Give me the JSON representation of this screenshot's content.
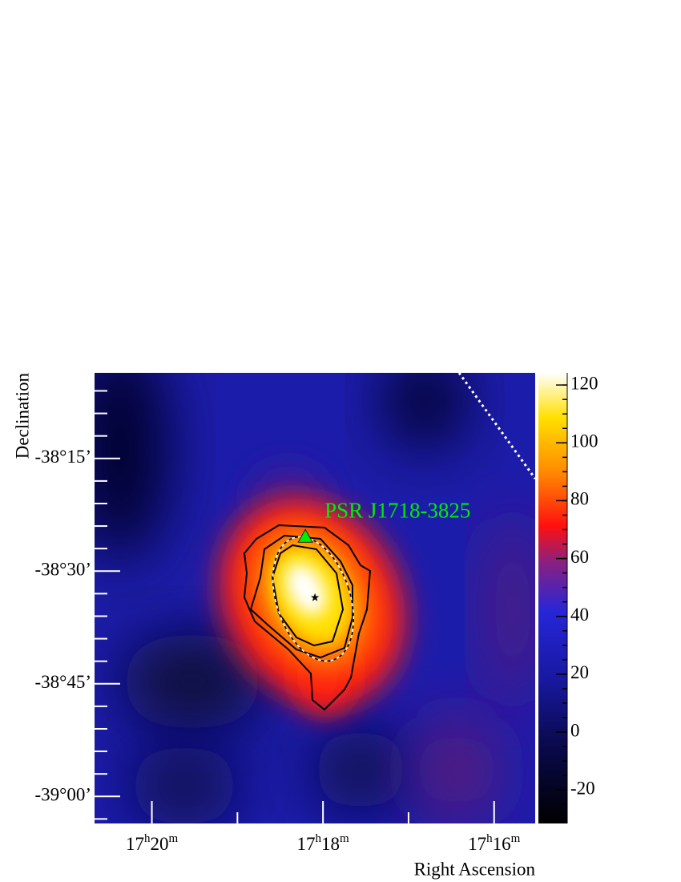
{
  "chart_data": {
    "type": "skymap",
    "x_label": "Right Ascension",
    "y_label": "Declination",
    "xlim": [
      1040.67,
      1035.52
    ],
    "xticks": [
      {
        "value": 1040,
        "label": [
          "17",
          "h",
          "20",
          "m"
        ]
      },
      {
        "value": 1038,
        "label": [
          "17",
          "h",
          "18",
          "m"
        ]
      },
      {
        "value": 1036,
        "label": [
          "17",
          "h",
          "16",
          "m"
        ]
      }
    ],
    "ylim": [
      -39.06,
      -38.06
    ],
    "yticks": [
      {
        "value": -38.25,
        "label": "-38°15’"
      },
      {
        "value": -38.5,
        "label": "-38°30’"
      },
      {
        "value": -38.75,
        "label": "-38°45’"
      },
      {
        "value": -39.0,
        "label": "-39°00’"
      }
    ],
    "zlim": [
      -31.6,
      124.2
    ],
    "zticks": [
      -20,
      0,
      20,
      40,
      60,
      80,
      100,
      120
    ],
    "markers": [
      {
        "name": "PSR J1718-3825",
        "shape": "triangle",
        "color": "#00ee00",
        "x": 1038.206,
        "y": -38.4235
      },
      {
        "shape": "star",
        "color": "#000000",
        "x": 1038.094,
        "y": -38.5587
      }
    ]
  }
}
